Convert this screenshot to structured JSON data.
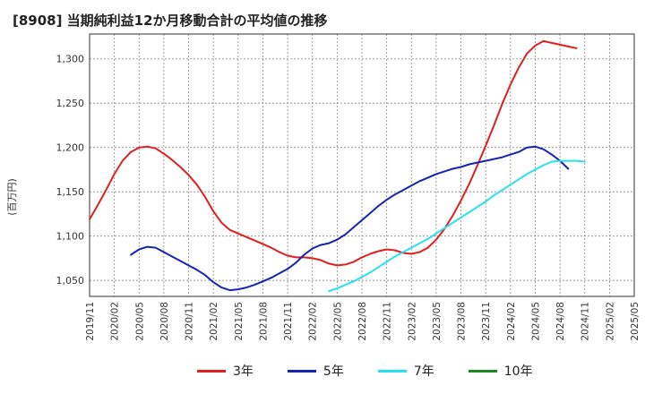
{
  "title": "[8908]  当期純利益12か月移動合計の平均値の推移",
  "y_unit": "(百万円)",
  "chart_data": {
    "type": "line",
    "title": "[8908]  当期純利益12か月移動合計の平均値の推移",
    "ylabel": "(百万円)",
    "xlabel": "",
    "ylim": [
      1032,
      1328
    ],
    "y_ticks": [
      1050,
      1100,
      1150,
      1200,
      1250,
      1300
    ],
    "y_tick_labels": [
      "1,050",
      "1,100",
      "1,150",
      "1,200",
      "1,250",
      "1,300"
    ],
    "x_tick_labels": [
      "2019/11",
      "2020/02",
      "2020/05",
      "2020/08",
      "2020/11",
      "2021/02",
      "2021/05",
      "2021/08",
      "2021/11",
      "2022/02",
      "2022/05",
      "2022/08",
      "2022/11",
      "2023/02",
      "2023/05",
      "2023/08",
      "2023/11",
      "2024/02",
      "2024/05",
      "2024/08",
      "2024/11",
      "2025/02",
      "2025/05"
    ],
    "x_start": "2019/11",
    "grid": true,
    "legend_position": "bottom",
    "series": [
      {
        "name": "3年",
        "color": "#e02020",
        "start": "2019/11",
        "values": [
          1119,
          1135,
          1152,
          1170,
          1185,
          1195,
          1200,
          1201,
          1199,
          1193,
          1186,
          1178,
          1169,
          1158,
          1144,
          1128,
          1115,
          1107,
          1103,
          1099,
          1095,
          1091,
          1087,
          1082,
          1078,
          1076,
          1076,
          1075,
          1073,
          1069,
          1067,
          1068,
          1071,
          1076,
          1080,
          1083,
          1085,
          1084,
          1081,
          1080,
          1082,
          1087,
          1096,
          1108,
          1123,
          1140,
          1159,
          1180,
          1202,
          1225,
          1249,
          1271,
          1290,
          1306,
          1315,
          1320,
          1318,
          1316,
          1314,
          1312
        ]
      },
      {
        "name": "5年",
        "color": "#1424b4",
        "start": "2020/04",
        "values": [
          1079,
          1085,
          1088,
          1087,
          1082,
          1077,
          1072,
          1067,
          1062,
          1056,
          1048,
          1042,
          1039,
          1040,
          1042,
          1045,
          1049,
          1053,
          1058,
          1063,
          1070,
          1079,
          1086,
          1090,
          1092,
          1096,
          1102,
          1110,
          1118,
          1126,
          1134,
          1141,
          1147,
          1152,
          1157,
          1162,
          1166,
          1170,
          1173,
          1176,
          1178,
          1181,
          1183,
          1185,
          1187,
          1189,
          1192,
          1195,
          1200,
          1201,
          1198,
          1192,
          1185,
          1176
        ]
      },
      {
        "name": "7年",
        "color": "#28e0f0",
        "start": "2022/04",
        "values": [
          1038,
          1041,
          1045,
          1049,
          1054,
          1059,
          1065,
          1071,
          1077,
          1082,
          1087,
          1092,
          1097,
          1103,
          1109,
          1115,
          1121,
          1127,
          1133,
          1139,
          1146,
          1152,
          1158,
          1164,
          1170,
          1175,
          1180,
          1184,
          1185,
          1185,
          1185,
          1184
        ]
      },
      {
        "name": "10年",
        "color": "#1a8a1a",
        "start": "2024/11",
        "values": []
      }
    ]
  }
}
